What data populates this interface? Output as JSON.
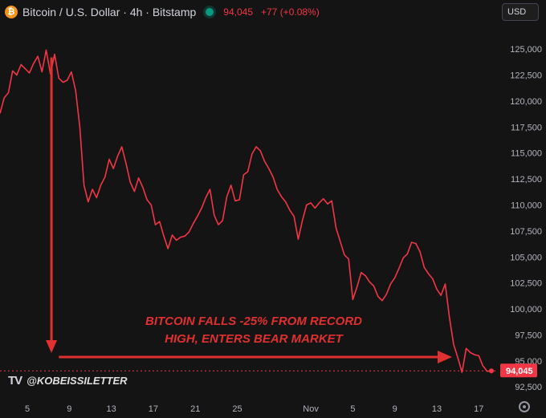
{
  "header": {
    "coin_glyph": "₿",
    "title": "Bitcoin / U.S. Dollar · 4h · Bitstamp",
    "price": "94,045",
    "change": "+77 (+0.08%)"
  },
  "currency": "USD",
  "watermark": {
    "logo": "TV",
    "handle": "@KOBEISSILETTER"
  },
  "colors": {
    "line": "#f23645",
    "annotation": "#e03030",
    "background": "#141414",
    "axis_text": "#b2b5be",
    "live": "#089981"
  },
  "chart_data": {
    "type": "line",
    "y_ticks": [
      "125,000",
      "122,500",
      "120,000",
      "117,500",
      "115,000",
      "112,500",
      "110,000",
      "107,500",
      "105,000",
      "102,500",
      "100,000",
      "97,500",
      "95,000",
      "92,500"
    ],
    "y_tick_values": [
      125000,
      122500,
      120000,
      117500,
      115000,
      112500,
      110000,
      107500,
      105000,
      102500,
      100000,
      97500,
      95000,
      92500
    ],
    "ylim": [
      91900,
      127400
    ],
    "x_ticks": [
      "5",
      "9",
      "13",
      "17",
      "21",
      "25",
      "Nov",
      "5",
      "9",
      "13",
      "17"
    ],
    "x_tick_days": [
      5,
      9,
      13,
      17,
      21,
      25,
      32,
      36,
      40,
      44,
      48
    ],
    "xlim": [
      2.4,
      49.2
    ],
    "last_price_label": "94,045",
    "last_price": 94045,
    "series": [
      {
        "points": [
          [
            2.4,
            118800
          ],
          [
            2.8,
            120300
          ],
          [
            3.2,
            120800
          ],
          [
            3.6,
            122900
          ],
          [
            4.0,
            122500
          ],
          [
            4.4,
            123500
          ],
          [
            4.8,
            123100
          ],
          [
            5.2,
            122700
          ],
          [
            5.6,
            123600
          ],
          [
            6.0,
            124300
          ],
          [
            6.4,
            122800
          ],
          [
            6.8,
            124900
          ],
          [
            7.2,
            122600
          ],
          [
            7.6,
            124500
          ],
          [
            8.0,
            122200
          ],
          [
            8.4,
            121800
          ],
          [
            8.8,
            122000
          ],
          [
            9.2,
            122800
          ],
          [
            9.6,
            121000
          ],
          [
            10.0,
            117500
          ],
          [
            10.4,
            111900
          ],
          [
            10.8,
            110300
          ],
          [
            11.2,
            111500
          ],
          [
            11.6,
            110700
          ],
          [
            12.0,
            111900
          ],
          [
            12.4,
            112700
          ],
          [
            12.8,
            114400
          ],
          [
            13.2,
            113500
          ],
          [
            13.6,
            114700
          ],
          [
            14.0,
            115600
          ],
          [
            14.4,
            114000
          ],
          [
            14.8,
            112200
          ],
          [
            15.2,
            111300
          ],
          [
            15.6,
            112600
          ],
          [
            16.0,
            111700
          ],
          [
            16.4,
            110500
          ],
          [
            16.8,
            110000
          ],
          [
            17.2,
            108100
          ],
          [
            17.6,
            108400
          ],
          [
            18.0,
            107000
          ],
          [
            18.4,
            105800
          ],
          [
            18.8,
            107100
          ],
          [
            19.2,
            106600
          ],
          [
            19.6,
            106900
          ],
          [
            20.0,
            107000
          ],
          [
            20.4,
            107400
          ],
          [
            20.8,
            108200
          ],
          [
            21.2,
            108900
          ],
          [
            21.6,
            109700
          ],
          [
            22.0,
            110700
          ],
          [
            22.4,
            111500
          ],
          [
            22.8,
            109000
          ],
          [
            23.2,
            108100
          ],
          [
            23.6,
            108500
          ],
          [
            24.0,
            110800
          ],
          [
            24.4,
            111900
          ],
          [
            24.8,
            110400
          ],
          [
            25.2,
            110500
          ],
          [
            25.6,
            112900
          ],
          [
            26.0,
            113200
          ],
          [
            26.4,
            114900
          ],
          [
            26.8,
            115600
          ],
          [
            27.2,
            115200
          ],
          [
            27.6,
            114200
          ],
          [
            28.0,
            113500
          ],
          [
            28.4,
            112700
          ],
          [
            28.8,
            111500
          ],
          [
            29.2,
            110800
          ],
          [
            29.6,
            110300
          ],
          [
            30.0,
            109500
          ],
          [
            30.4,
            108900
          ],
          [
            30.8,
            106700
          ],
          [
            31.2,
            108500
          ],
          [
            31.6,
            110000
          ],
          [
            32.0,
            110200
          ],
          [
            32.4,
            109700
          ],
          [
            32.8,
            110200
          ],
          [
            33.2,
            110600
          ],
          [
            33.6,
            110100
          ],
          [
            34.0,
            110400
          ],
          [
            34.4,
            107800
          ],
          [
            34.8,
            106500
          ],
          [
            35.2,
            105200
          ],
          [
            35.6,
            104800
          ],
          [
            36.0,
            100900
          ],
          [
            36.4,
            102100
          ],
          [
            36.8,
            103500
          ],
          [
            37.2,
            103200
          ],
          [
            37.6,
            102600
          ],
          [
            38.0,
            102200
          ],
          [
            38.4,
            101200
          ],
          [
            38.8,
            100800
          ],
          [
            39.2,
            101400
          ],
          [
            39.6,
            102400
          ],
          [
            40.0,
            103000
          ],
          [
            40.4,
            103900
          ],
          [
            40.8,
            104900
          ],
          [
            41.2,
            105300
          ],
          [
            41.6,
            106400
          ],
          [
            42.0,
            106300
          ],
          [
            42.4,
            105500
          ],
          [
            42.8,
            104000
          ],
          [
            43.2,
            103400
          ],
          [
            43.6,
            102900
          ],
          [
            44.0,
            101900
          ],
          [
            44.4,
            101300
          ],
          [
            44.8,
            102400
          ],
          [
            45.2,
            99200
          ],
          [
            45.6,
            96600
          ],
          [
            46.0,
            95300
          ],
          [
            46.4,
            93900
          ],
          [
            46.8,
            96200
          ],
          [
            47.2,
            95800
          ],
          [
            47.6,
            95600
          ],
          [
            48.0,
            95500
          ],
          [
            48.4,
            94500
          ],
          [
            48.8,
            94000
          ],
          [
            49.2,
            94045
          ]
        ]
      }
    ],
    "annotation": {
      "line1": "BITCOIN FALLS -25% FROM RECORD",
      "line2": "HIGH, ENTERS BEAR MARKET"
    }
  }
}
